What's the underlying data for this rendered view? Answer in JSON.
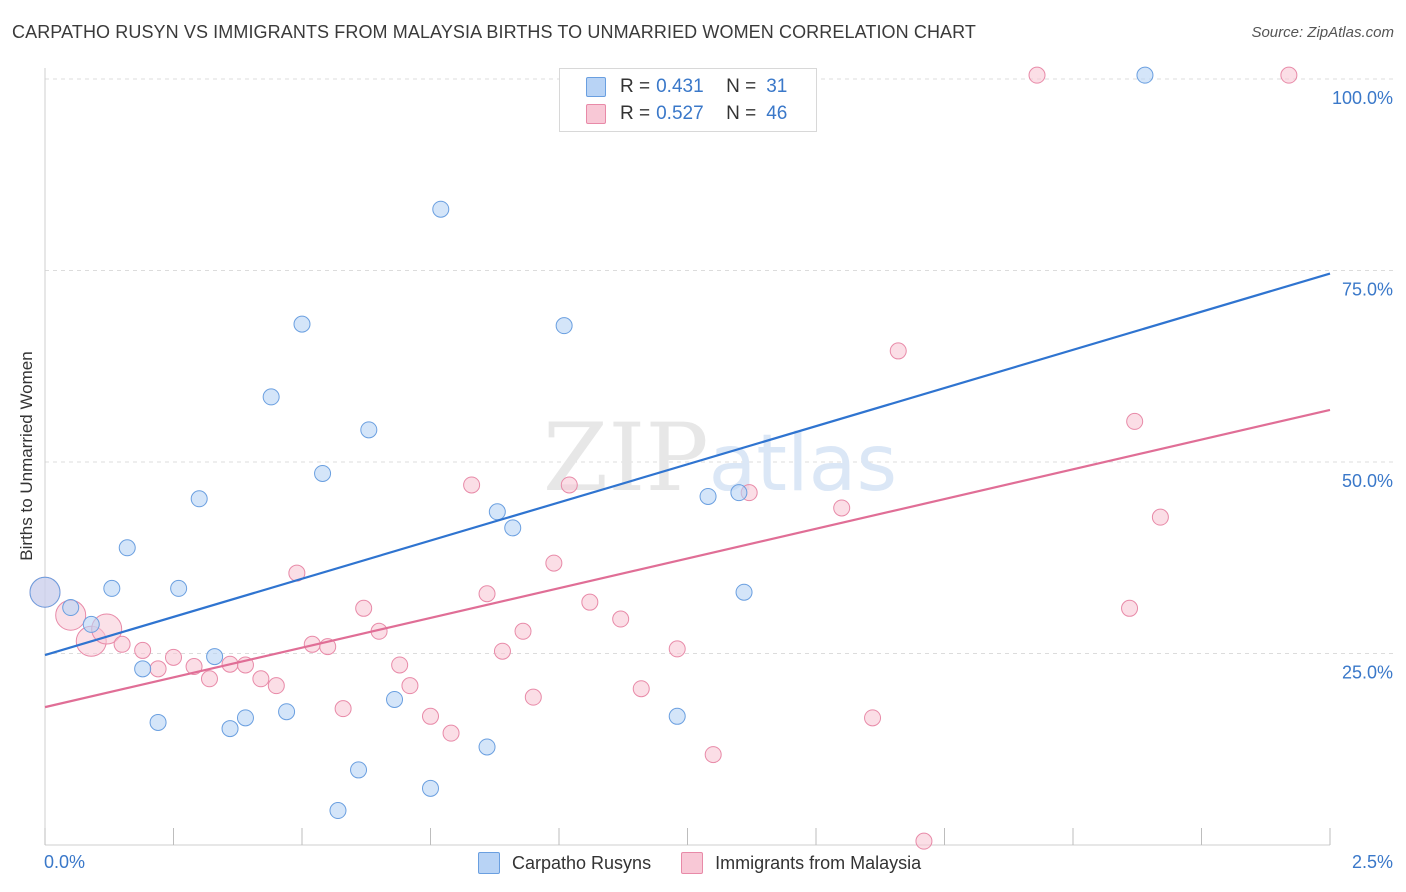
{
  "chart_data": {
    "type": "scatter",
    "title": "CARPATHO RUSYN VS IMMIGRANTS FROM MALAYSIA BIRTHS TO UNMARRIED WOMEN CORRELATION CHART",
    "source": "Source: ZipAtlas.com",
    "xlabel": "",
    "ylabel": "Births to Unmarried Women",
    "xlim": [
      0,
      2.5
    ],
    "ylim": [
      0,
      100
    ],
    "x_tick_labels": {
      "min": "0.0%",
      "max": "2.5%"
    },
    "y_ticks": [
      {
        "value": 25,
        "label": "25.0%"
      },
      {
        "value": 50,
        "label": "50.0%"
      },
      {
        "value": 75,
        "label": "75.0%"
      },
      {
        "value": 100,
        "label": "100.0%"
      }
    ],
    "grid": true,
    "legend_position": "top-center",
    "watermark": "ZIPatlas",
    "series": [
      {
        "name": "Carpatho Rusyns",
        "color": "#6a9fe0",
        "fill": "#b8d3f5",
        "line_color": "#2f74d0",
        "R": "0.431",
        "N": "31",
        "trend": {
          "x": [
            0,
            2.5
          ],
          "y": [
            24.8,
            74.6
          ]
        },
        "points": [
          {
            "x": 0.0,
            "y": 33.0,
            "big": true
          },
          {
            "x": 0.05,
            "y": 31.0
          },
          {
            "x": 0.09,
            "y": 28.8
          },
          {
            "x": 0.13,
            "y": 33.5
          },
          {
            "x": 0.16,
            "y": 38.8
          },
          {
            "x": 0.19,
            "y": 23.0
          },
          {
            "x": 0.22,
            "y": 16.0
          },
          {
            "x": 0.26,
            "y": 33.5
          },
          {
            "x": 0.3,
            "y": 45.2
          },
          {
            "x": 0.33,
            "y": 24.6
          },
          {
            "x": 0.36,
            "y": 15.2
          },
          {
            "x": 0.39,
            "y": 16.6
          },
          {
            "x": 0.44,
            "y": 58.5
          },
          {
            "x": 0.47,
            "y": 17.4
          },
          {
            "x": 0.5,
            "y": 68.0
          },
          {
            "x": 0.54,
            "y": 48.5
          },
          {
            "x": 0.57,
            "y": 4.5
          },
          {
            "x": 0.61,
            "y": 9.8
          },
          {
            "x": 0.63,
            "y": 54.2
          },
          {
            "x": 0.68,
            "y": 19.0
          },
          {
            "x": 0.75,
            "y": 7.4
          },
          {
            "x": 0.77,
            "y": 83.0
          },
          {
            "x": 0.86,
            "y": 12.8
          },
          {
            "x": 0.88,
            "y": 43.5
          },
          {
            "x": 0.91,
            "y": 41.4
          },
          {
            "x": 1.01,
            "y": 67.8
          },
          {
            "x": 1.23,
            "y": 16.8
          },
          {
            "x": 1.29,
            "y": 45.5
          },
          {
            "x": 1.35,
            "y": 46.0
          },
          {
            "x": 1.36,
            "y": 33.0
          },
          {
            "x": 2.14,
            "y": 100.5
          }
        ]
      },
      {
        "name": "Immigrants from Malaysia",
        "color": "#e88aa8",
        "fill": "#f8c8d6",
        "line_color": "#e06e96",
        "R": "0.527",
        "N": "46",
        "trend": {
          "x": [
            0,
            2.5
          ],
          "y": [
            18.0,
            56.8
          ]
        },
        "points": [
          {
            "x": 0.0,
            "y": 33.0,
            "big": true
          },
          {
            "x": 0.05,
            "y": 30.0,
            "big": true
          },
          {
            "x": 0.09,
            "y": 26.6,
            "big": true
          },
          {
            "x": 0.12,
            "y": 28.2,
            "big": true
          },
          {
            "x": 0.15,
            "y": 26.2
          },
          {
            "x": 0.19,
            "y": 25.4
          },
          {
            "x": 0.22,
            "y": 23.0
          },
          {
            "x": 0.25,
            "y": 24.5
          },
          {
            "x": 0.29,
            "y": 23.3
          },
          {
            "x": 0.32,
            "y": 21.7
          },
          {
            "x": 0.36,
            "y": 23.6
          },
          {
            "x": 0.39,
            "y": 23.5
          },
          {
            "x": 0.42,
            "y": 21.7
          },
          {
            "x": 0.45,
            "y": 20.8
          },
          {
            "x": 0.49,
            "y": 35.5
          },
          {
            "x": 0.52,
            "y": 26.2
          },
          {
            "x": 0.55,
            "y": 25.9
          },
          {
            "x": 0.58,
            "y": 17.8
          },
          {
            "x": 0.62,
            "y": 30.9
          },
          {
            "x": 0.65,
            "y": 27.9
          },
          {
            "x": 0.69,
            "y": 23.5
          },
          {
            "x": 0.71,
            "y": 20.8
          },
          {
            "x": 0.75,
            "y": 16.8
          },
          {
            "x": 0.79,
            "y": 14.6
          },
          {
            "x": 0.83,
            "y": 47.0
          },
          {
            "x": 0.86,
            "y": 32.8
          },
          {
            "x": 0.89,
            "y": 25.3
          },
          {
            "x": 0.93,
            "y": 27.9
          },
          {
            "x": 0.95,
            "y": 19.3
          },
          {
            "x": 0.99,
            "y": 36.8
          },
          {
            "x": 1.02,
            "y": 47.0
          },
          {
            "x": 1.06,
            "y": 31.7
          },
          {
            "x": 1.12,
            "y": 29.5
          },
          {
            "x": 1.16,
            "y": 20.4
          },
          {
            "x": 1.23,
            "y": 25.6
          },
          {
            "x": 1.3,
            "y": 11.8
          },
          {
            "x": 1.37,
            "y": 46.0
          },
          {
            "x": 1.55,
            "y": 44.0
          },
          {
            "x": 1.61,
            "y": 16.6
          },
          {
            "x": 1.66,
            "y": 64.5
          },
          {
            "x": 1.71,
            "y": 0.5
          },
          {
            "x": 1.93,
            "y": 100.5
          },
          {
            "x": 2.11,
            "y": 30.9
          },
          {
            "x": 2.12,
            "y": 55.3
          },
          {
            "x": 2.17,
            "y": 42.8
          },
          {
            "x": 2.42,
            "y": 100.5
          }
        ]
      }
    ]
  },
  "legend_labels": {
    "r_label": "R =",
    "n_label": "N ="
  }
}
